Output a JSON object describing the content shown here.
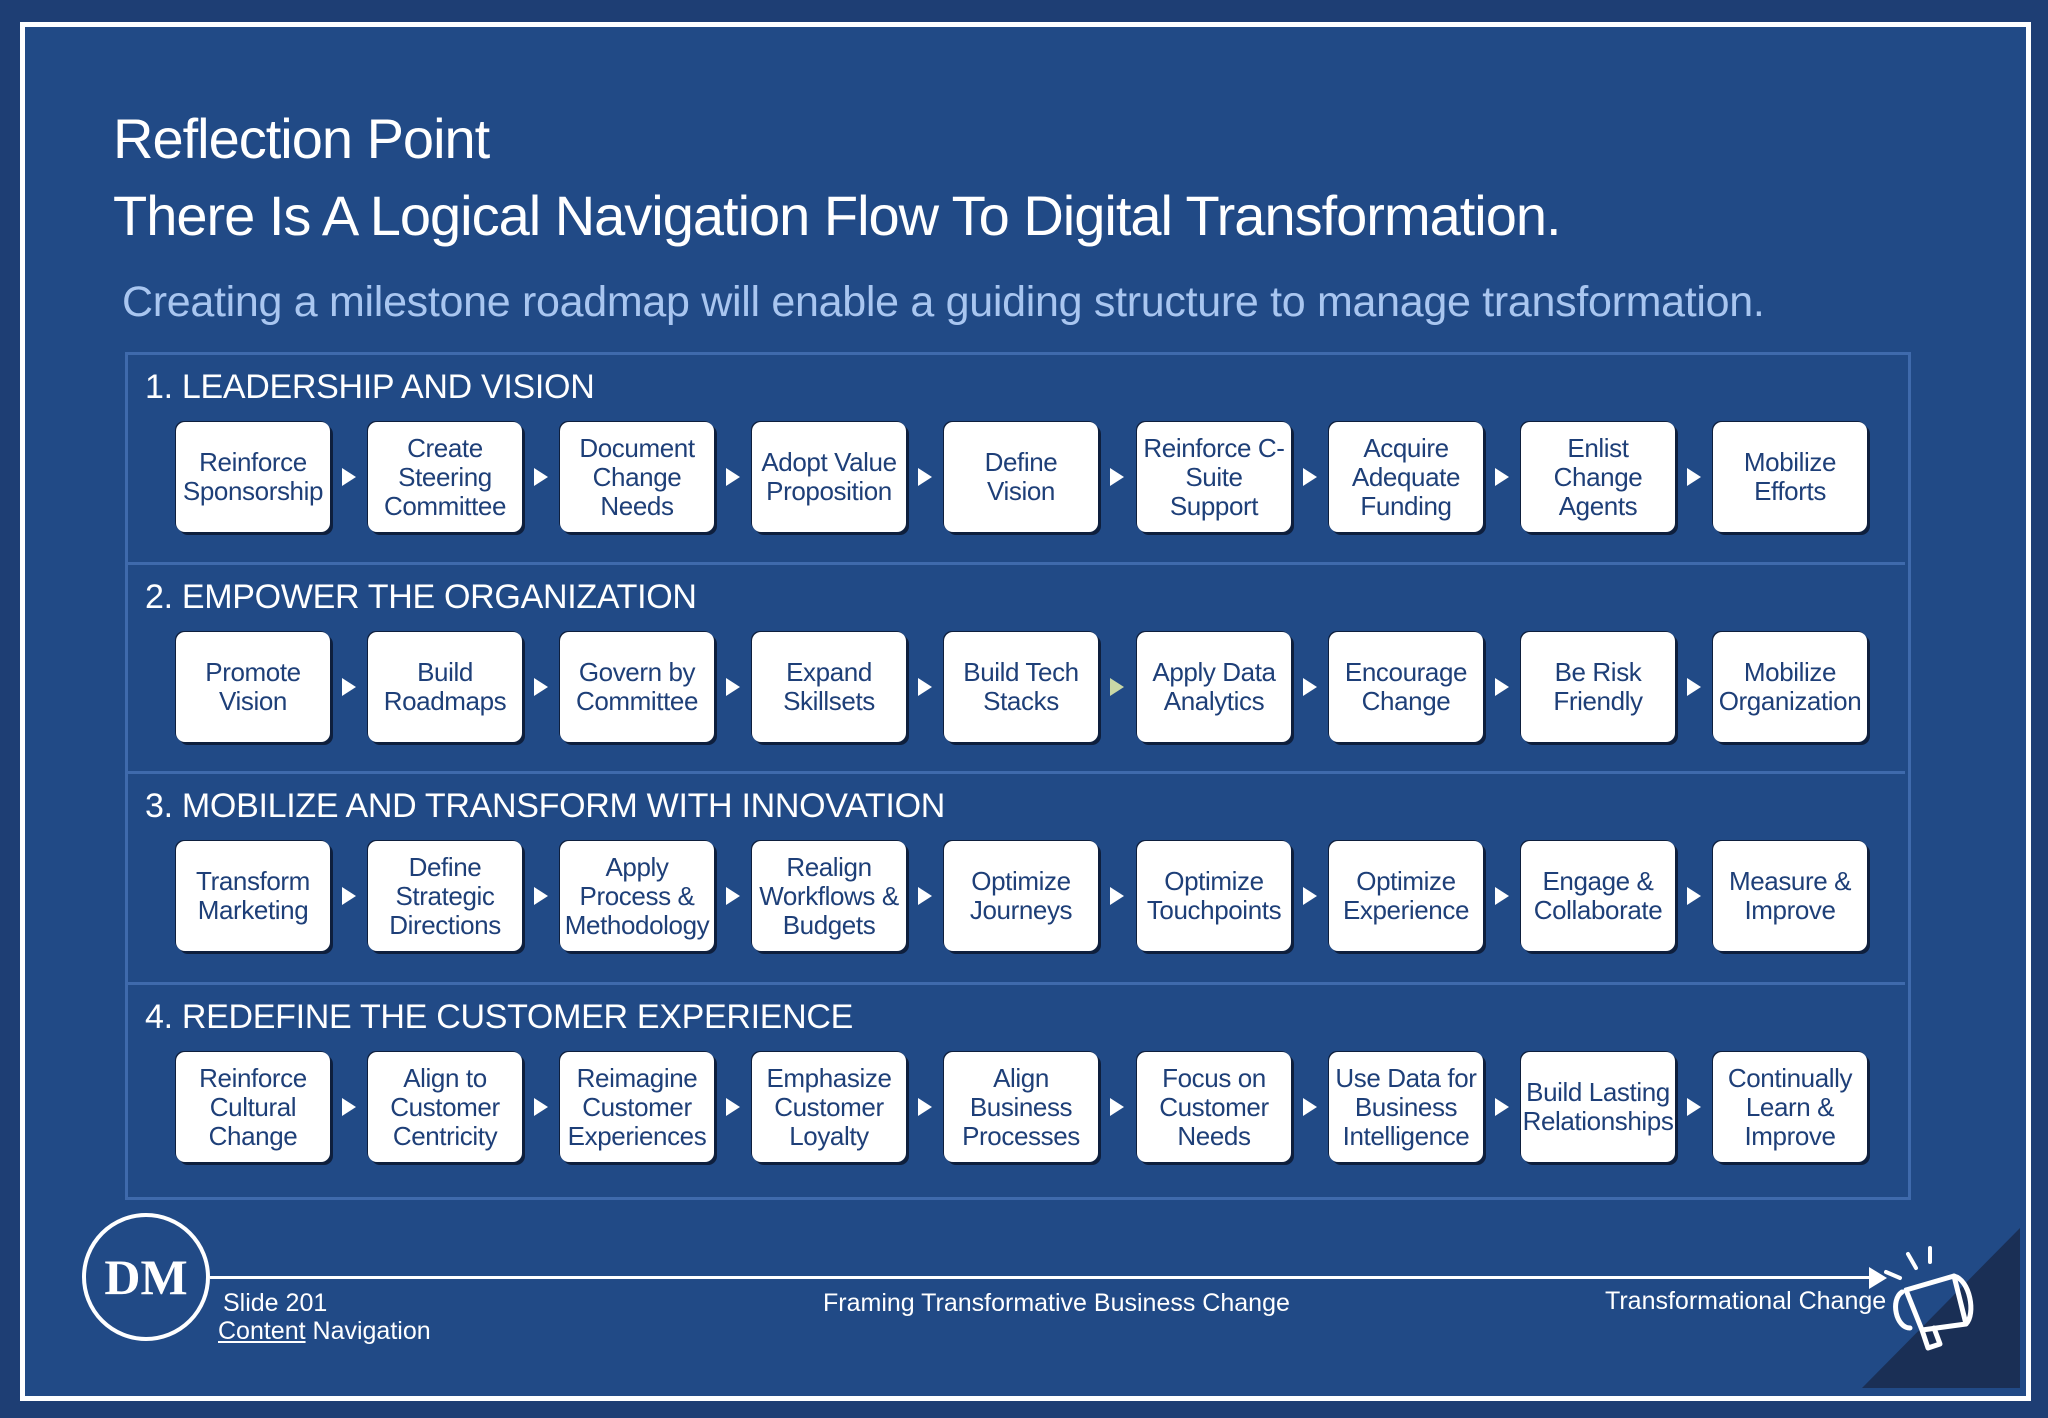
{
  "title": {
    "line1": "Reflection Point",
    "line2": "There Is A Logical Navigation Flow To Digital Transformation."
  },
  "subtitle": "Creating a milestone roadmap will enable a guiding structure to manage transformation.",
  "sections": [
    {
      "title": "1. LEADERSHIP AND VISION",
      "steps": [
        "Reinforce Sponsorship",
        "Create Steering Committee",
        "Document Change Needs",
        "Adopt Value Proposition",
        "Define Vision",
        "Reinforce C-Suite Support",
        "Acquire Adequate Funding",
        "Enlist Change Agents",
        "Mobilize Efforts"
      ]
    },
    {
      "title": "2. EMPOWER THE ORGANIZATION",
      "steps": [
        "Promote Vision",
        "Build Roadmaps",
        "Govern by Committee",
        "Expand Skillsets",
        "Build Tech Stacks",
        "Apply Data Analytics",
        "Encourage Change",
        "Be Risk Friendly",
        "Mobilize Organization"
      ]
    },
    {
      "title": "3. MOBILIZE AND TRANSFORM WITH INNOVATION",
      "steps": [
        "Transform Marketing",
        "Define Strategic Directions",
        "Apply Process & Methodology",
        "Realign Workflows & Budgets",
        "Optimize Journeys",
        "Optimize Touchpoints",
        "Optimize Experience",
        "Engage & Collaborate",
        "Measure & Improve"
      ]
    },
    {
      "title": "4. REDEFINE THE CUSTOMER EXPERIENCE",
      "steps": [
        "Reinforce Cultural Change",
        "Align to Customer Centricity",
        "Reimagine Customer Experiences",
        "Emphasize Customer Loyalty",
        "Align Business Processes",
        "Focus on Customer Needs",
        "Use Data for Business Intelligence",
        "Build Lasting Relationships",
        "Continually Learn & Improve"
      ]
    }
  ],
  "footer": {
    "logo": "DM",
    "slide": "Slide 201",
    "nav_link": "Content",
    "nav_rest": " Navigation",
    "center": "Framing Transformative Business Change",
    "right": "Transformational Change"
  },
  "colors": {
    "background": "#214a86",
    "accent_text": "#a9c6f0",
    "box_text": "#1e3f78"
  }
}
